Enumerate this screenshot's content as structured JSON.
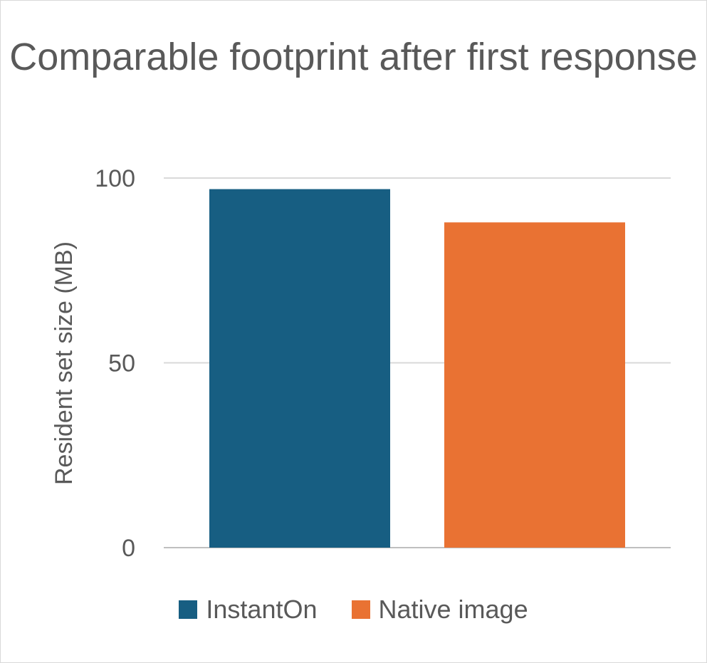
{
  "chart_data": {
    "type": "bar",
    "title": "Comparable footprint after first response",
    "xlabel": "",
    "ylabel": "Resident set size (MB)",
    "ylim": [
      0,
      100
    ],
    "yticks": [
      0,
      50,
      100
    ],
    "grid": true,
    "legend_position": "bottom",
    "categories": [
      ""
    ],
    "series": [
      {
        "name": "InstantOn",
        "values": [
          97
        ],
        "color": "#175e82"
      },
      {
        "name": "Native image",
        "values": [
          88
        ],
        "color": "#e97233"
      }
    ]
  }
}
